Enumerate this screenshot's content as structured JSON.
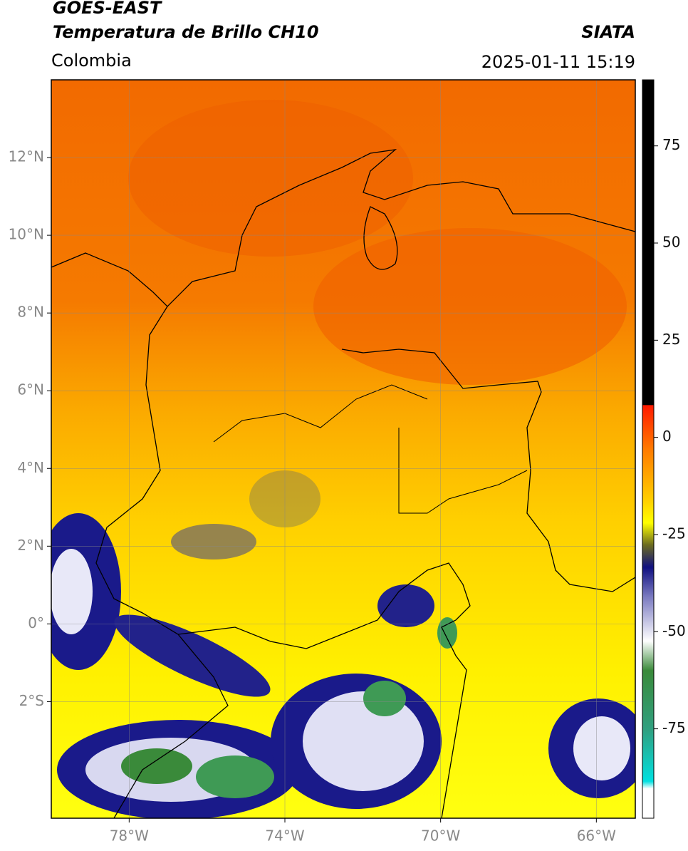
{
  "header": {
    "title": "GOES-EAST",
    "subtitle": "Temperatura de Brillo CH10",
    "source": "SIATA",
    "region": "Colombia",
    "timestamp": "2025-01-11 15:19"
  },
  "map": {
    "xlim": [
      -80,
      -65
    ],
    "ylim": [
      -5,
      14
    ],
    "xticks": [
      {
        "value": -78,
        "label": "78°W"
      },
      {
        "value": -74,
        "label": "74°W"
      },
      {
        "value": -70,
        "label": "70°W"
      },
      {
        "value": -66,
        "label": "66°W"
      }
    ],
    "yticks": [
      {
        "value": 12,
        "label": "12°N"
      },
      {
        "value": 10,
        "label": "10°N"
      },
      {
        "value": 8,
        "label": "8°N"
      },
      {
        "value": 6,
        "label": "6°N"
      },
      {
        "value": 4,
        "label": "4°N"
      },
      {
        "value": 2,
        "label": "2°N"
      },
      {
        "value": 0,
        "label": "0°"
      },
      {
        "value": -2,
        "label": "2°S"
      }
    ],
    "grid": true
  },
  "colorbar": {
    "lim": [
      -98,
      92
    ],
    "ticks": [
      75,
      50,
      25,
      0,
      -25,
      -50,
      -75
    ]
  }
}
